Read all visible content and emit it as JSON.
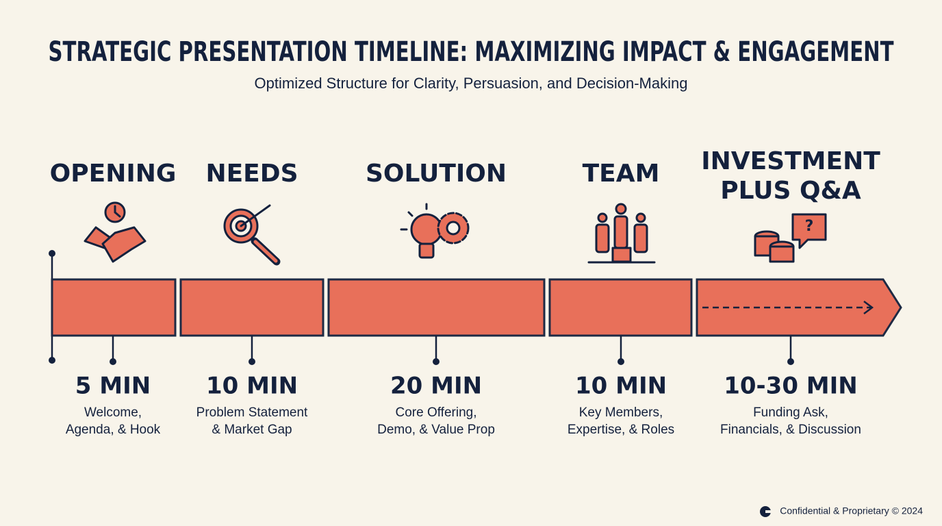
{
  "header": {
    "title": "STRATEGIC PRESENTATION TIMELINE: MAXIMIZING IMPACT & ENGAGEMENT",
    "subtitle": "Optimized Structure for Clarity, Persuasion, and Decision-Making"
  },
  "stages": [
    {
      "title": [
        "OPENING"
      ],
      "duration": "5 MIN",
      "description": [
        "Welcome,",
        "Agenda, & Hook"
      ]
    },
    {
      "title": [
        "NEEDS"
      ],
      "duration": "10 MIN",
      "description": [
        "Problem Statement",
        "& Market Gap"
      ]
    },
    {
      "title": [
        "SOLUTION"
      ],
      "duration": "20 MIN",
      "description": [
        "Core Offering,",
        "Demo, & Value Prop"
      ]
    },
    {
      "title": [
        "TEAM"
      ],
      "duration": "10 MIN",
      "description": [
        "Key Members,",
        "Expertise, & Roles"
      ]
    },
    {
      "title": [
        "INVESTMENT",
        "PLUS Q&A"
      ],
      "duration": "10-30 MIN",
      "description": [
        "Funding Ask,",
        "Financials, & Discussion"
      ]
    }
  ],
  "footer": "Confidential & Proprietary © 2024"
}
